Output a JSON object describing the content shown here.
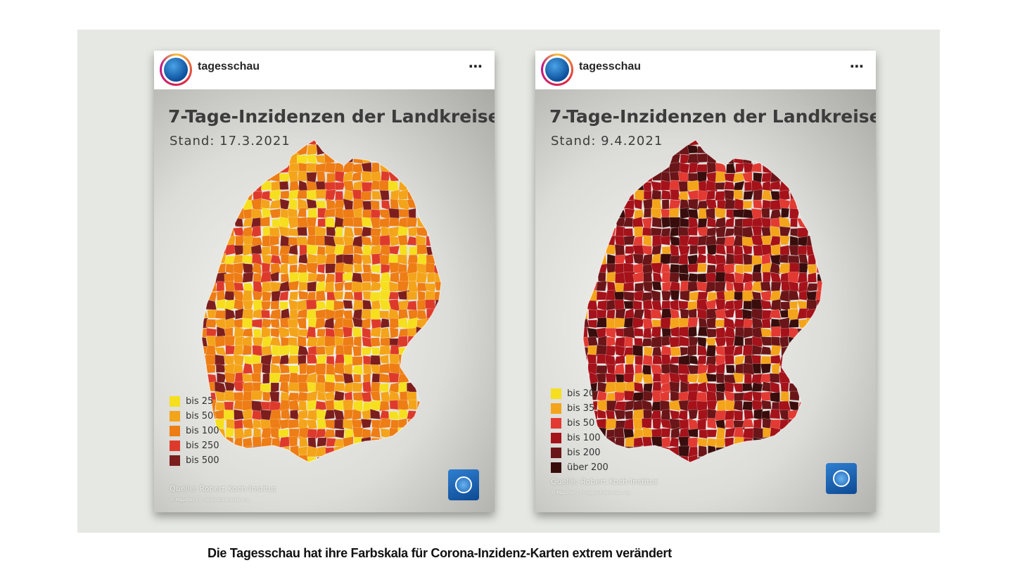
{
  "caption": "Die Tagesschau hat ihre Farbskala für Corona-Inzidenz-Karten extrem verändert",
  "posts": [
    {
      "account": "tagesschau",
      "more_icon": "⋯",
      "title": "7-Tage-Inzidenzen der Landkreise",
      "date": "Stand: 17.3.2021",
      "source": "Quelle: Robert Koch-Institut",
      "attribution": "© Maptiler / © openstreetmap.org",
      "legend": [
        {
          "label": "bis 25",
          "color": "#f6df1e"
        },
        {
          "label": "bis 50",
          "color": "#f4a41a"
        },
        {
          "label": "bis 100",
          "color": "#ed7d14"
        },
        {
          "label": "bis 250",
          "color": "#de3a2c"
        },
        {
          "label": "bis 500",
          "color": "#7d1e1e"
        }
      ],
      "map_palette": [
        "#ed7d14",
        "#ed7d14",
        "#ed7d14",
        "#f4a41a",
        "#f4a41a",
        "#de3a2c",
        "#f6df1e",
        "#7d1e1e"
      ]
    },
    {
      "account": "tagesschau",
      "more_icon": "⋯",
      "title": "7-Tage-Inzidenzen der Landkreise",
      "date": "Stand: 9.4.2021",
      "source": "Quelle: Robert Koch-Institut",
      "attribution": "© Maptiler / © openstreetmap.org",
      "legend": [
        {
          "label": "bis 20",
          "color": "#f6df1e"
        },
        {
          "label": "bis 35",
          "color": "#f4a41a"
        },
        {
          "label": "bis 50",
          "color": "#e23a32"
        },
        {
          "label": "bis 100",
          "color": "#a5121a"
        },
        {
          "label": "bis 200",
          "color": "#6a1518"
        },
        {
          "label": "über 200",
          "color": "#3a0d0d"
        }
      ],
      "map_palette": [
        "#a5121a",
        "#a5121a",
        "#a5121a",
        "#6a1518",
        "#6a1518",
        "#e23a32",
        "#3a0d0d",
        "#f4a41a"
      ]
    }
  ]
}
